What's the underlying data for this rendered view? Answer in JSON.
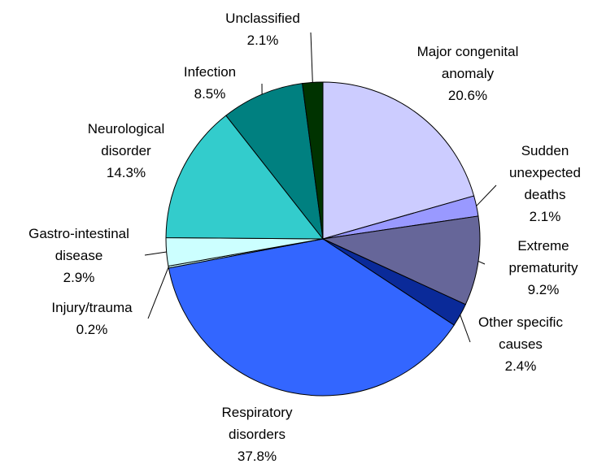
{
  "chart_data": {
    "type": "pie",
    "categories": [
      "Major congenital anomaly",
      "Sudden unexpected deaths",
      "Extreme prematurity",
      "Other specific causes",
      "Respiratory disorders",
      "Injury/trauma",
      "Gastro-intestinal disease",
      "Neurological disorder",
      "Infection",
      "Unclassified"
    ],
    "values": [
      20.6,
      2.1,
      9.2,
      2.4,
      37.8,
      0.2,
      2.9,
      14.3,
      8.5,
      2.1
    ],
    "value_labels": [
      "20.6%",
      "2.1%",
      "9.2%",
      "2.4%",
      "37.8%",
      "0.2%",
      "2.9%",
      "14.3%",
      "8.5%",
      "2.1%"
    ],
    "colors": [
      "#ccccff",
      "#9999ff",
      "#666699",
      "#0a2a99",
      "#3366ff",
      "#ccffff",
      "#ccffff",
      "#33cccc",
      "#008080",
      "#003300"
    ]
  }
}
